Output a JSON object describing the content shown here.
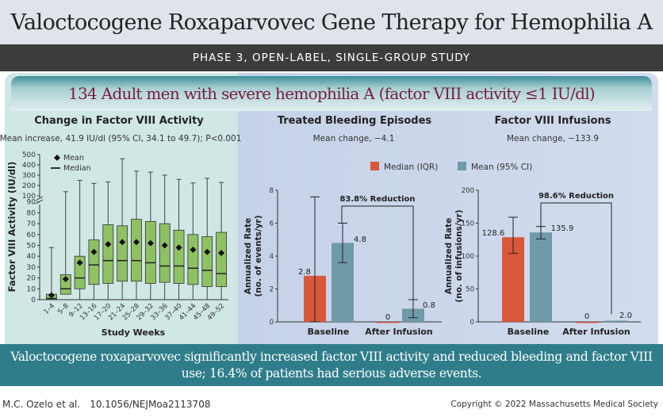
{
  "header": {
    "title": "Valoctocogene Roxaparvovec Gene Therapy for Hemophilia A",
    "design": "PHASE 3, OPEN-LABEL, SINGLE-GROUP STUDY",
    "population": "134 Adult men with severe hemophilia A (factor VIII activity ≤1 IU/dl)"
  },
  "colors": {
    "box": "#8fc163",
    "median_bar": "#d9573a",
    "mean_bar": "#6f9aa8",
    "accent": "#2f7d8a",
    "population_text": "#7a1c3e"
  },
  "chart_data": [
    {
      "type": "box",
      "title": "Change in Factor VIII Activity",
      "subtitle": "Mean increase, 41.9 IU/dl (95% CI, 34.1 to 49.7); P<0.001",
      "xlabel": "Study Weeks",
      "ylabel": "Factor VIII Activity (IU/dl)",
      "yticks_lower": [
        0,
        10,
        20,
        30,
        40,
        50,
        60,
        70,
        80,
        90
      ],
      "yticks_upper": [
        100,
        200,
        300,
        400,
        500
      ],
      "legend": [
        "Mean",
        "Median"
      ],
      "categories": [
        "1–4",
        "5–8",
        "9–12",
        "13–16",
        "17–20",
        "21–24",
        "25–28",
        "29–32",
        "33–36",
        "37–40",
        "41–44",
        "45–48",
        "49–52"
      ],
      "series": [
        {
          "min": 0,
          "q1": 0,
          "median": 1,
          "q3": 5,
          "max": 48,
          "mean": 4
        },
        {
          "min": 5,
          "q1": 5,
          "median": 10,
          "q3": 23,
          "max": 140,
          "mean": 19
        },
        {
          "min": 0,
          "q1": 10,
          "median": 20,
          "q3": 40,
          "max": 250,
          "mean": 34
        },
        {
          "min": 0,
          "q1": 14,
          "median": 32,
          "q3": 55,
          "max": 220,
          "mean": 44
        },
        {
          "min": 0,
          "q1": 15,
          "median": 36,
          "q3": 69,
          "max": 235,
          "mean": 51
        },
        {
          "min": 0,
          "q1": 17,
          "median": 36,
          "q3": 68,
          "max": 460,
          "mean": 53
        },
        {
          "min": 0,
          "q1": 17,
          "median": 36,
          "q3": 74,
          "max": 340,
          "mean": 53
        },
        {
          "min": 0,
          "q1": 15,
          "median": 34,
          "q3": 72,
          "max": 330,
          "mean": 52
        },
        {
          "min": 0,
          "q1": 16,
          "median": 31,
          "q3": 70,
          "max": 300,
          "mean": 50
        },
        {
          "min": 0,
          "q1": 15,
          "median": 31,
          "q3": 64,
          "max": 260,
          "mean": 48
        },
        {
          "min": 0,
          "q1": 14,
          "median": 29,
          "q3": 60,
          "max": 225,
          "mean": 46
        },
        {
          "min": 0,
          "q1": 12,
          "median": 27,
          "q3": 58,
          "max": 270,
          "mean": 44
        },
        {
          "min": 0,
          "q1": 12,
          "median": 24,
          "q3": 62,
          "max": 230,
          "mean": 43
        }
      ]
    },
    {
      "type": "bar",
      "title": "Treated Bleeding Episodes",
      "subtitle": "Mean change, −4.1",
      "ylabel": "Annualized Rate",
      "ylabel2": "(no. of events/yr)",
      "ylim": [
        0,
        8
      ],
      "yticks": [
        0,
        2,
        4,
        6,
        8
      ],
      "categories": [
        "Baseline",
        "After Infusion"
      ],
      "series": [
        {
          "name": "Median (IQR)",
          "values": [
            2.8,
            0
          ],
          "labels": [
            "2.8",
            "0"
          ],
          "err": [
            [
              0,
              7.6
            ],
            null
          ]
        },
        {
          "name": "Mean (95% CI)",
          "values": [
            4.8,
            0.8
          ],
          "labels": [
            "4.8",
            "0.8"
          ],
          "err": [
            [
              3.6,
              6.0
            ],
            [
              0.25,
              1.35
            ]
          ]
        }
      ],
      "annotation": "83.8% Reduction"
    },
    {
      "type": "bar",
      "title": "Factor VIII Infusions",
      "subtitle": "Mean change, −133.9",
      "ylabel": "Annualized Rate",
      "ylabel2": "(no. of infusions/yr)",
      "ylim": [
        0,
        200
      ],
      "yticks": [
        0,
        50,
        100,
        150,
        200
      ],
      "categories": [
        "Baseline",
        "After Infusion"
      ],
      "series": [
        {
          "name": "Median (IQR)",
          "values": [
            128.6,
            0
          ],
          "labels": [
            "128.6",
            "0"
          ],
          "err": [
            [
              104,
              159
            ],
            null
          ]
        },
        {
          "name": "Mean (95% CI)",
          "values": [
            135.9,
            2.0
          ],
          "labels": [
            "135.9",
            "2.0"
          ],
          "err": [
            [
              126,
              145
            ],
            null
          ]
        }
      ],
      "annotation": "98.6% Reduction"
    }
  ],
  "legend": {
    "median": "Median (IQR)",
    "mean": "Mean (95% CI)"
  },
  "conclusion": "Valoctocogene roxaparvovec significantly increased factor VIII activity and reduced bleeding and factor VIII use; 16.4% of patients had serious adverse events.",
  "footer": {
    "authors": "M.C. Ozelo et al.",
    "doi": "10.1056/NEJMoa2113708",
    "copyright": "Copyright © 2022 Massachusetts Medical Society"
  }
}
